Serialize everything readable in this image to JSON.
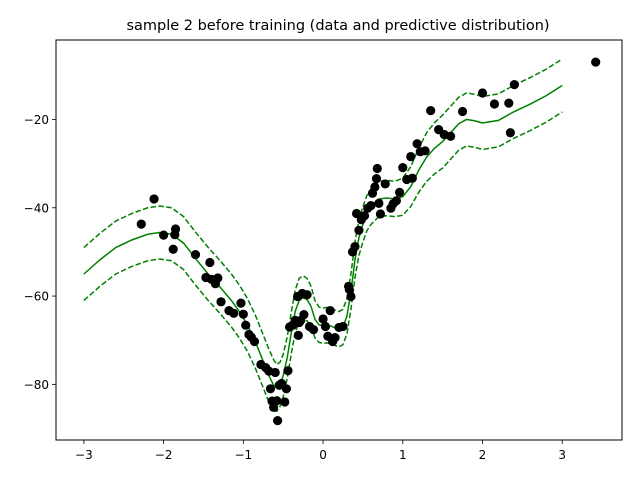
{
  "chart_data": {
    "type": "scatter",
    "title": "sample 2 before training (data and predictive distribution)",
    "xlabel": "",
    "ylabel": "",
    "xlim": [
      -3.35,
      3.75
    ],
    "ylim": [
      -92.6,
      -2.0
    ],
    "x_ticks": [
      -3,
      -2,
      -1,
      0,
      1,
      2,
      3
    ],
    "x_tick_labels": [
      "−3",
      "−2",
      "−1",
      "0",
      "1",
      "2",
      "3"
    ],
    "y_ticks": [
      -80,
      -60,
      -40,
      -20
    ],
    "y_tick_labels": [
      "−80",
      "−60",
      "−40",
      "−20"
    ],
    "grid": false,
    "legend": "none",
    "colors": {
      "points": "#000000",
      "mean": "#008000",
      "band": "#008000"
    },
    "series": [
      {
        "kind": "points",
        "x": [
          -2.28,
          -2.12,
          -2.0,
          -1.88,
          -1.85,
          -1.86,
          -1.6,
          -1.47,
          -1.42,
          -1.4,
          -1.35,
          -1.32,
          -1.28,
          -1.18,
          -1.12,
          -1.03,
          -1.0,
          -0.97,
          -0.93,
          -0.9,
          -0.86,
          -0.78,
          -0.72,
          -0.68,
          -0.66,
          -0.64,
          -0.62,
          -0.6,
          -0.58,
          -0.57,
          -0.55,
          -0.52,
          -0.48,
          -0.46,
          -0.44,
          -0.42,
          -0.38,
          -0.35,
          -0.32,
          -0.31,
          -0.3,
          -0.28,
          -0.26,
          -0.24,
          -0.2,
          -0.17,
          -0.12,
          0.0,
          0.03,
          0.06,
          0.09,
          0.12,
          0.15,
          0.2,
          0.25,
          0.32,
          0.33,
          0.35,
          0.37,
          0.4,
          0.42,
          0.45,
          0.48,
          0.52,
          0.56,
          0.6,
          0.62,
          0.65,
          0.67,
          0.68,
          0.7,
          0.72,
          0.78,
          0.85,
          0.88,
          0.92,
          0.96,
          1.0,
          1.05,
          1.1,
          1.12,
          1.18,
          1.22,
          1.28,
          1.35,
          1.45,
          1.52,
          1.6,
          1.75,
          2.0,
          2.15,
          2.33,
          2.35,
          2.4,
          3.42
        ],
        "y": [
          -43.7,
          -38.0,
          -46.2,
          -49.4,
          -44.8,
          -46.1,
          -50.6,
          -55.8,
          -52.4,
          -56.2,
          -57.2,
          -55.9,
          -61.3,
          -63.3,
          -63.9,
          -61.6,
          -64.1,
          -66.6,
          -68.7,
          -69.3,
          -70.3,
          -75.5,
          -76.2,
          -77.0,
          -81.0,
          -83.8,
          -85.2,
          -77.3,
          -83.7,
          -88.2,
          -80.2,
          -79.8,
          -84.0,
          -81.0,
          -76.9,
          -67.0,
          -66.6,
          -65.5,
          -60.1,
          -68.9,
          -66.0,
          -65.5,
          -59.4,
          -64.2,
          -59.7,
          -66.9,
          -67.6,
          -65.2,
          -66.9,
          -69.1,
          -63.3,
          -70.3,
          -69.4,
          -67.1,
          -66.9,
          -57.8,
          -58.5,
          -60.1,
          -50.0,
          -48.8,
          -41.3,
          -45.1,
          -42.7,
          -41.8,
          -40.1,
          -39.5,
          -36.7,
          -35.3,
          -33.4,
          -31.1,
          -39.0,
          -41.4,
          -34.6,
          -40.1,
          -39.1,
          -38.4,
          -36.5,
          -30.9,
          -33.6,
          -28.4,
          -33.3,
          -25.5,
          -27.3,
          -27.1,
          -18.0,
          -22.3,
          -23.4,
          -23.8,
          -18.2,
          -14.0,
          -16.5,
          -16.3,
          -23.0,
          -12.1,
          -7.0
        ]
      },
      {
        "kind": "mean",
        "x": [
          -3.0,
          -2.8,
          -2.6,
          -2.4,
          -2.2,
          -2.05,
          -1.9,
          -1.75,
          -1.6,
          -1.45,
          -1.3,
          -1.15,
          -1.05,
          -0.95,
          -0.85,
          -0.75,
          -0.68,
          -0.62,
          -0.58,
          -0.54,
          -0.5,
          -0.45,
          -0.4,
          -0.35,
          -0.3,
          -0.25,
          -0.2,
          -0.15,
          -0.1,
          -0.05,
          0.0,
          0.05,
          0.1,
          0.15,
          0.2,
          0.25,
          0.3,
          0.35,
          0.4,
          0.45,
          0.5,
          0.55,
          0.6,
          0.7,
          0.8,
          0.9,
          1.0,
          1.1,
          1.2,
          1.3,
          1.4,
          1.5,
          1.6,
          1.7,
          1.8,
          1.9,
          2.0,
          2.2,
          2.4,
          2.6,
          2.8,
          3.0
        ],
        "y": [
          -55.0,
          -51.8,
          -49.0,
          -47.3,
          -46.0,
          -45.6,
          -46.0,
          -48.0,
          -51.5,
          -54.8,
          -57.8,
          -61.0,
          -63.5,
          -66.5,
          -70.3,
          -74.8,
          -78.0,
          -80.2,
          -80.8,
          -80.0,
          -78.0,
          -74.0,
          -68.5,
          -63.5,
          -61.0,
          -60.4,
          -60.8,
          -62.4,
          -65.3,
          -66.5,
          -66.7,
          -66.6,
          -66.8,
          -67.2,
          -67.5,
          -67.0,
          -64.5,
          -59.0,
          -51.8,
          -46.8,
          -43.7,
          -41.2,
          -39.8,
          -38.0,
          -37.8,
          -38.0,
          -37.5,
          -35.2,
          -31.5,
          -28.5,
          -26.5,
          -25.0,
          -23.0,
          -21.0,
          -20.0,
          -20.3,
          -20.8,
          -20.2,
          -18.2,
          -16.5,
          -14.6,
          -12.3
        ]
      }
    ],
    "band_halfwidth_mean_minus_lower": [
      6.0,
      6.0,
      6.0,
      6.0,
      6.0,
      6.0,
      6.0,
      6.0,
      6.0,
      6.0,
      6.0,
      6.0,
      6.0,
      6.0,
      6.0,
      6.0,
      6.0,
      5.8,
      5.3,
      5.0,
      4.8,
      4.7,
      4.7,
      4.8,
      5.0,
      5.0,
      4.8,
      4.6,
      4.2,
      4.0,
      4.0,
      4.0,
      4.0,
      4.0,
      4.0,
      4.0,
      4.0,
      4.0,
      4.0,
      4.0,
      4.0,
      4.0,
      4.0,
      4.0,
      4.0,
      4.0,
      4.2,
      4.5,
      5.0,
      5.5,
      5.8,
      6.0,
      6.0,
      6.0,
      6.0,
      6.0,
      6.0,
      6.0,
      6.0,
      6.0,
      6.0,
      6.0
    ],
    "band_halfwidth_upper_minus_mean": [
      6.0,
      6.0,
      6.0,
      6.0,
      6.0,
      6.0,
      6.0,
      6.0,
      6.0,
      6.0,
      6.0,
      6.0,
      6.0,
      6.0,
      6.0,
      6.0,
      6.0,
      5.8,
      5.3,
      5.0,
      4.8,
      4.7,
      4.7,
      4.8,
      5.0,
      5.0,
      4.8,
      4.6,
      4.2,
      4.0,
      4.0,
      4.0,
      4.0,
      4.0,
      4.0,
      4.0,
      4.0,
      4.0,
      4.0,
      4.0,
      4.0,
      4.0,
      4.0,
      4.0,
      4.0,
      4.0,
      4.2,
      4.5,
      5.0,
      5.5,
      5.8,
      6.0,
      6.0,
      6.0,
      6.0,
      6.0,
      6.0,
      6.0,
      6.0,
      6.0,
      6.0,
      6.0
    ]
  }
}
